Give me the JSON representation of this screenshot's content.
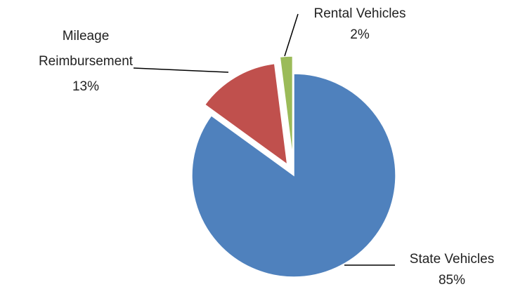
{
  "chart_data": {
    "type": "pie",
    "categories": [
      "State Vehicles",
      "Mileage Reimbursement",
      "Rental Vehicles"
    ],
    "values": [
      85,
      13,
      2
    ],
    "value_labels": [
      "85%",
      "13%",
      "2%"
    ],
    "colors": [
      "#4f81bd",
      "#c0504d",
      "#9bbb59"
    ]
  }
}
